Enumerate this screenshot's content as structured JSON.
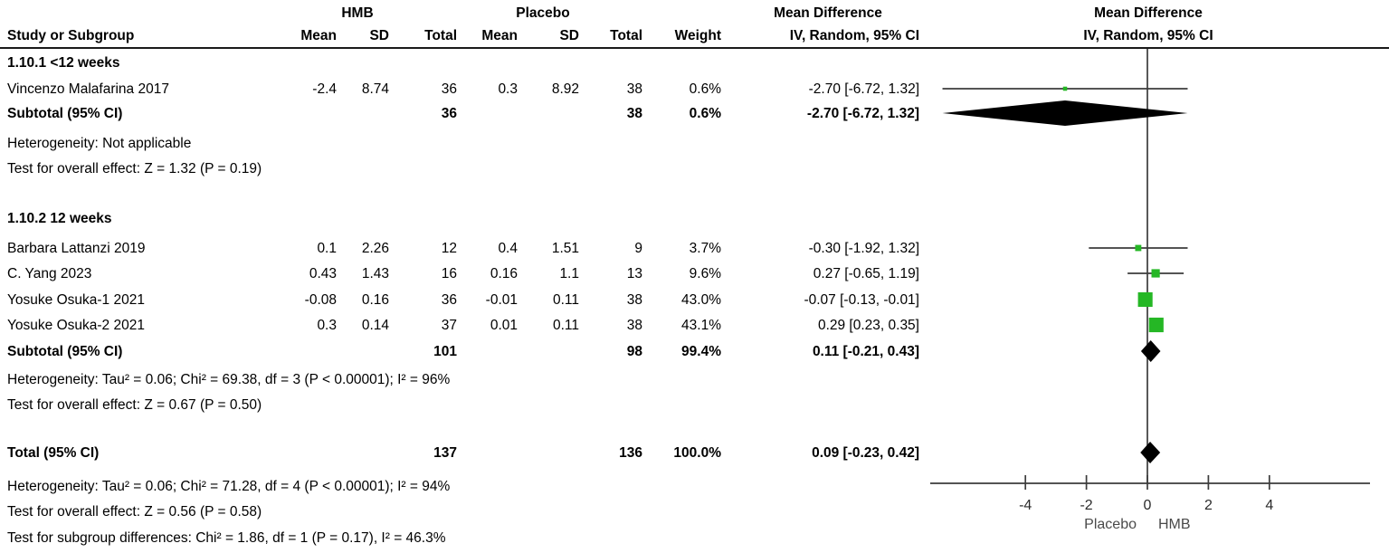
{
  "header": {
    "study": "Study or Subgroup",
    "group_hmb": "HMB",
    "group_placebo": "Placebo",
    "mean1": "Mean",
    "sd1": "SD",
    "total1": "Total",
    "mean2": "Mean",
    "sd2": "SD",
    "total2": "Total",
    "weight": "Weight",
    "ci": "IV, Random, 95% CI",
    "md_text": "Mean Difference",
    "md_plot": "Mean Difference",
    "ci_plot": "IV, Random, 95% CI"
  },
  "groups": [
    {
      "label": "1.10.1 <12 weeks",
      "studies": [
        {
          "name": "Vincenzo Malafarina 2017",
          "mean1": "-2.4",
          "sd1": "8.74",
          "total1": "36",
          "mean2": "0.3",
          "sd2": "8.92",
          "total2": "38",
          "weight": "0.6%",
          "ci": "-2.70 [-6.72, 1.32]",
          "md": -2.7,
          "lo": -6.72,
          "hi": 1.32,
          "weight_num": 0.6
        }
      ],
      "subtotal": {
        "label": "Subtotal (95% CI)",
        "total1": "36",
        "total2": "38",
        "weight": "0.6%",
        "ci": "-2.70 [-6.72, 1.32]",
        "md": -2.7,
        "lo": -6.72,
        "hi": 1.32
      },
      "heterogeneity": "Heterogeneity: Not applicable",
      "overall_test": "Test for overall effect: Z = 1.32 (P = 0.19)"
    },
    {
      "label": "1.10.2 12 weeks",
      "studies": [
        {
          "name": "Barbara Lattanzi 2019",
          "mean1": "0.1",
          "sd1": "2.26",
          "total1": "12",
          "mean2": "0.4",
          "sd2": "1.51",
          "total2": "9",
          "weight": "3.7%",
          "ci": "-0.30 [-1.92, 1.32]",
          "md": -0.3,
          "lo": -1.92,
          "hi": 1.32,
          "weight_num": 3.7
        },
        {
          "name": "C. Yang 2023",
          "mean1": "0.43",
          "sd1": "1.43",
          "total1": "16",
          "mean2": "0.16",
          "sd2": "1.1",
          "total2": "13",
          "weight": "9.6%",
          "ci": "0.27 [-0.65, 1.19]",
          "md": 0.27,
          "lo": -0.65,
          "hi": 1.19,
          "weight_num": 9.6
        },
        {
          "name": "Yosuke Osuka-1 2021",
          "mean1": "-0.08",
          "sd1": "0.16",
          "total1": "36",
          "mean2": "-0.01",
          "sd2": "0.11",
          "total2": "38",
          "weight": "43.0%",
          "ci": "-0.07 [-0.13, -0.01]",
          "md": -0.07,
          "lo": -0.13,
          "hi": -0.01,
          "weight_num": 43.0
        },
        {
          "name": "Yosuke Osuka-2 2021",
          "mean1": "0.3",
          "sd1": "0.14",
          "total1": "37",
          "mean2": "0.01",
          "sd2": "0.11",
          "total2": "38",
          "weight": "43.1%",
          "ci": "0.29 [0.23, 0.35]",
          "md": 0.29,
          "lo": 0.23,
          "hi": 0.35,
          "weight_num": 43.1
        }
      ],
      "subtotal": {
        "label": "Subtotal (95% CI)",
        "total1": "101",
        "total2": "98",
        "weight": "99.4%",
        "ci": "0.11 [-0.21, 0.43]",
        "md": 0.11,
        "lo": -0.21,
        "hi": 0.43
      },
      "heterogeneity": "Heterogeneity: Tau² = 0.06; Chi² = 69.38, df = 3 (P < 0.00001); I² = 96%",
      "overall_test": "Test for overall effect: Z = 0.67 (P = 0.50)"
    }
  ],
  "total": {
    "label": "Total (95% CI)",
    "total1": "137",
    "total2": "136",
    "weight": "100.0%",
    "ci": "0.09 [-0.23, 0.42]",
    "md": 0.09,
    "lo": -0.23,
    "hi": 0.42,
    "heterogeneity": "Heterogeneity: Tau² = 0.06; Chi² = 71.28, df = 4 (P < 0.00001); I² = 94%",
    "overall_test": "Test for overall effect: Z = 0.56 (P = 0.58)",
    "subgroup_test": "Test for subgroup differences: Chi² = 1.86, df = 1 (P = 0.17), I² = 46.3%"
  },
  "axis": {
    "ticks": [
      -4,
      -2,
      0,
      2,
      4
    ],
    "tick_labels": [
      "-4",
      "-2",
      "0",
      "2",
      "4"
    ],
    "left_label": "Placebo",
    "right_label": "HMB"
  },
  "colors": {
    "marker_green": "#25B725",
    "line": "#3C3C3C",
    "text": "#000000",
    "axis_label": "#4a4a4a",
    "tick_label": "#2b2b2b"
  },
  "chart_data": {
    "type": "scatter",
    "title": "Mean Difference IV, Random, 95% CI (forest plot)",
    "x_ticks": [
      -4,
      -2,
      0,
      2,
      4
    ],
    "xlim": [
      -7.2,
      7.9
    ],
    "favours_left": "Placebo",
    "favours_right": "HMB",
    "series": [
      {
        "name": "Vincenzo Malafarina 2017",
        "subgroup": "1.10.1 <12 weeks",
        "md": -2.7,
        "ci": [
          -6.72,
          1.32
        ],
        "weight_pct": 0.6
      },
      {
        "name": "Barbara Lattanzi 2019",
        "subgroup": "1.10.2 12 weeks",
        "md": -0.3,
        "ci": [
          -1.92,
          1.32
        ],
        "weight_pct": 3.7
      },
      {
        "name": "C. Yang 2023",
        "subgroup": "1.10.2 12 weeks",
        "md": 0.27,
        "ci": [
          -0.65,
          1.19
        ],
        "weight_pct": 9.6
      },
      {
        "name": "Yosuke Osuka-1 2021",
        "subgroup": "1.10.2 12 weeks",
        "md": -0.07,
        "ci": [
          -0.13,
          -0.01
        ],
        "weight_pct": 43.0
      },
      {
        "name": "Yosuke Osuka-2 2021",
        "subgroup": "1.10.2 12 weeks",
        "md": 0.29,
        "ci": [
          0.23,
          0.35
        ],
        "weight_pct": 43.1
      }
    ],
    "summaries": [
      {
        "name": "Subtotal <12 weeks",
        "md": -2.7,
        "ci": [
          -6.72,
          1.32
        ],
        "weight_pct": 0.6
      },
      {
        "name": "Subtotal 12 weeks",
        "md": 0.11,
        "ci": [
          -0.21,
          0.43
        ],
        "weight_pct": 99.4
      },
      {
        "name": "Total",
        "md": 0.09,
        "ci": [
          -0.23,
          0.42
        ],
        "weight_pct": 100.0
      }
    ]
  }
}
